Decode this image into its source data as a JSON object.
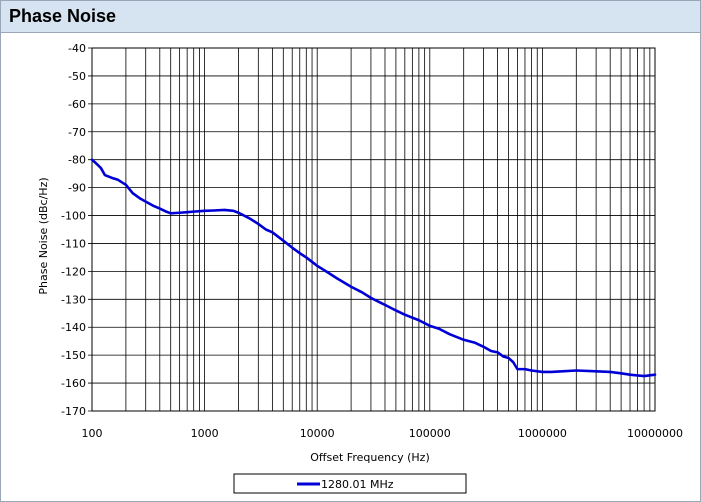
{
  "panel": {
    "title": "Phase Noise"
  },
  "colors": {
    "header_background": "#d6e3f1",
    "series": "#0000d6",
    "grid": "#000000"
  },
  "chart_data": {
    "type": "line",
    "title": "",
    "xlabel": "Offset Frequency (Hz)",
    "ylabel": "Phase Noise (dBc/Hz)",
    "xscale": "log",
    "xlim": [
      100,
      10000000
    ],
    "ylim": [
      -170,
      -40
    ],
    "xticks": [
      100,
      1000,
      10000,
      100000,
      1000000,
      10000000
    ],
    "xtick_labels": [
      "100",
      "1000",
      "10000",
      "100000",
      "1000000",
      "10000000"
    ],
    "yticks": [
      -170,
      -160,
      -150,
      -140,
      -130,
      -120,
      -110,
      -100,
      -90,
      -80,
      -70,
      -60,
      -50,
      -40
    ],
    "ytick_labels": [
      "-170",
      "-160",
      "-150",
      "-140",
      "-130",
      "-120",
      "-110",
      "-100",
      "-90",
      "-80",
      "-70",
      "-60",
      "-50",
      "-40"
    ],
    "grid": true,
    "legend": "bottom-center",
    "series": [
      {
        "name": "1280.01 MHz",
        "color": "#0000d6",
        "x": [
          100,
          110,
          120,
          130,
          150,
          170,
          200,
          230,
          270,
          300,
          350,
          400,
          450,
          500,
          600,
          700,
          800,
          1000,
          1200,
          1500,
          1800,
          2000,
          2500,
          3000,
          3500,
          4000,
          5000,
          6000,
          7000,
          8000,
          10000,
          12000,
          15000,
          20000,
          25000,
          30000,
          40000,
          50000,
          60000,
          80000,
          100000,
          120000,
          150000,
          200000,
          250000,
          300000,
          350000,
          400000,
          450000,
          500000,
          550000,
          600000,
          700000,
          800000,
          1000000,
          1200000,
          1500000,
          2000000,
          3000000,
          4000000,
          5000000,
          6000000,
          8000000,
          10000000
        ],
        "y": [
          -80,
          -81.5,
          -83,
          -85.5,
          -86.5,
          -87.2,
          -89,
          -92,
          -94,
          -95,
          -96.5,
          -97.5,
          -98.5,
          -99.2,
          -99,
          -98.8,
          -98.6,
          -98.3,
          -98.2,
          -98,
          -98.3,
          -99,
          -101,
          -103,
          -105,
          -106,
          -109,
          -111.5,
          -113.5,
          -115,
          -118,
          -120,
          -122.5,
          -125.5,
          -127.5,
          -129.5,
          -132,
          -134,
          -135.5,
          -137.5,
          -139.5,
          -140.5,
          -142.5,
          -144.5,
          -145.5,
          -147,
          -148.5,
          -149,
          -150.5,
          -151,
          -152.5,
          -155,
          -155,
          -155.5,
          -156,
          -156,
          -155.8,
          -155.5,
          -155.8,
          -156,
          -156.5,
          -157,
          -157.5,
          -157
        ]
      }
    ]
  }
}
